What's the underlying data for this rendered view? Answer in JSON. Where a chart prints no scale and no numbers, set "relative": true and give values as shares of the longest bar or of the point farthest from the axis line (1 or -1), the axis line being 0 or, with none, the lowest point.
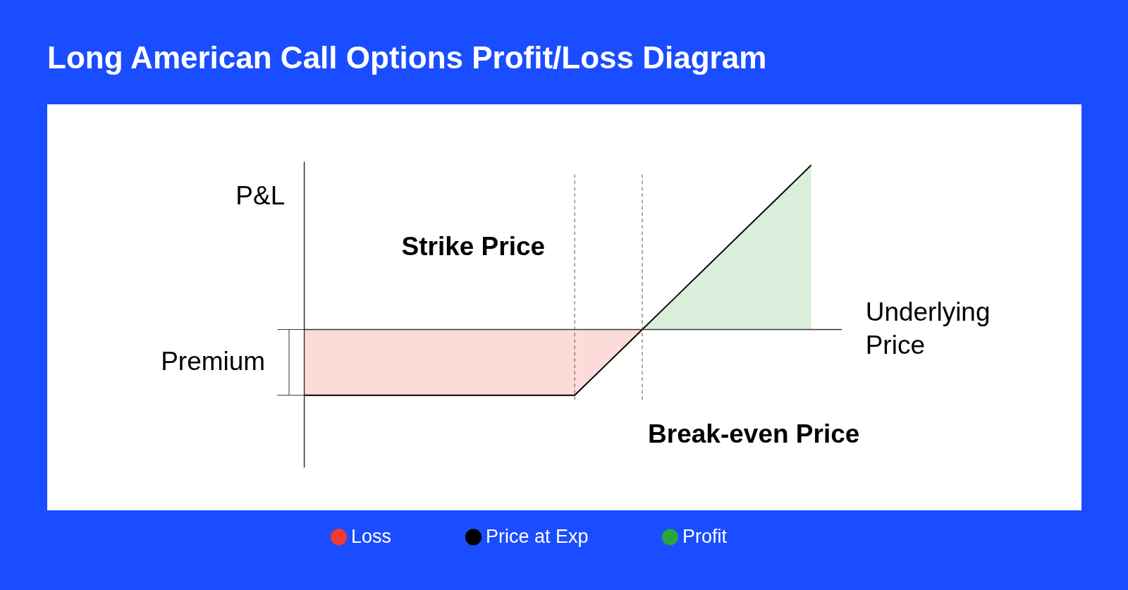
{
  "chart_data": {
    "type": "area",
    "title": "Long American Call Options Profit/Loss Diagram",
    "xlabel": "Underlying Price",
    "ylabel": "P&L",
    "relative": true,
    "categories": [
      null,
      null,
      null,
      null,
      null,
      null,
      null,
      null,
      null,
      null,
      null,
      null,
      null,
      null,
      null,
      null
    ],
    "series": [
      {
        "name": "Loss",
        "color": "#f03c2e",
        "values": [
          -0.4,
          -0.4,
          -0.4,
          -0.4,
          -0.4,
          -0.4,
          -0.4,
          -0.4,
          -0.4,
          -0.2,
          0,
          null,
          null,
          null,
          null,
          null
        ]
      },
      {
        "name": "Price at Exp",
        "type": "line",
        "color": "#000000",
        "values": [
          -0.4,
          -0.4,
          -0.4,
          -0.4,
          -0.4,
          -0.4,
          -0.4,
          -0.4,
          -0.4,
          -0.2,
          0,
          0.2,
          0.4,
          0.6,
          0.8,
          1.0
        ]
      },
      {
        "name": "Profit",
        "color": "#2ca53c",
        "values": [
          null,
          null,
          null,
          null,
          null,
          null,
          null,
          null,
          null,
          null,
          0,
          0.2,
          0.4,
          0.6,
          0.8,
          1.0
        ]
      }
    ],
    "annotations": [
      "Premium",
      "Strike Price",
      "Break-even Price"
    ],
    "legend": "bottom"
  }
}
